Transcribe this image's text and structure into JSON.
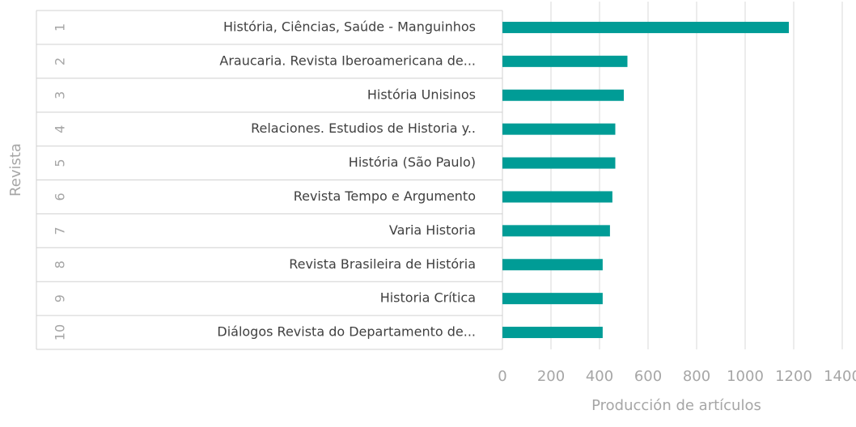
{
  "chart_data": {
    "type": "bar",
    "orientation": "horizontal",
    "ranks": [
      1,
      2,
      3,
      4,
      5,
      6,
      7,
      8,
      9,
      10
    ],
    "categories": [
      "História, Ciências, Saúde - Manguinhos",
      "Araucaria. Revista Iberoamericana de...",
      "História Unisinos",
      "Relaciones. Estudios de Historia y..",
      "História (São Paulo)",
      "Revista Tempo e Argumento",
      "Varia Historia",
      "Revista Brasileira de História",
      "Historia Crítica",
      "Diálogos Revista do Departamento de..."
    ],
    "values": [
      1180,
      515,
      500,
      465,
      465,
      453,
      443,
      413,
      413,
      413
    ],
    "color": "#009c96",
    "xlim": [
      0,
      1400
    ],
    "xticks": [
      0,
      200,
      400,
      600,
      800,
      1000,
      1200,
      1400
    ],
    "grid": true,
    "xlabel": "Producción de artículos",
    "ylabel": "Revista"
  }
}
